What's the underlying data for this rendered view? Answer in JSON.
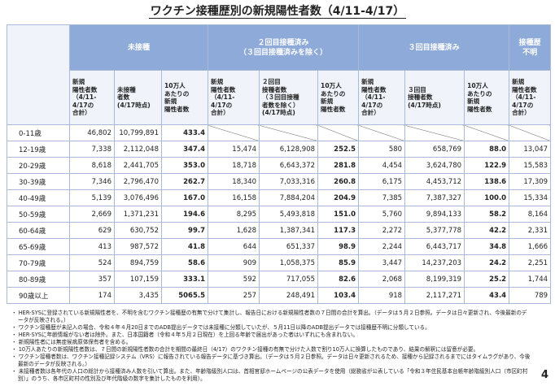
{
  "header": {
    "title": "ワクチン接種歴別の新規陽性者数（4/11-4/17）"
  },
  "table": {
    "groups": [
      {
        "label": "未接種",
        "span": 3
      },
      {
        "label": "２回目接種済み\n（３回目接種済みを除く）",
        "span": 3
      },
      {
        "label": "３回目接種済み",
        "span": 3
      },
      {
        "label": "接種歴\n不明",
        "span": 1
      }
    ],
    "subheaders": [
      "新規\n陽性者数\n（4/11-\n4/17の\n合計）",
      "未接種\n者数\n(4/17時点)",
      "10万人\nあたりの\n新規\n陽性者数",
      "新規\n陽性者数\n（4/11-\n4/17の\n合計）",
      "２回目\n接種者数\n（３回目接種\n者数を除く）\n(4/17時点)",
      "10万人\nあたりの\n新規\n陽性者数",
      "新規\n陽性者数\n（4/11-\n4/17の\n合計）",
      "３回目\n接種者数\n(4/17時点)",
      "10万人\nあたりの\n新規\n陽性者数",
      "新規\n陽性者数\n（4/11-\n4/17の\n合計）"
    ],
    "rows": [
      {
        "age": "0-11歳",
        "cells": [
          "46,802",
          "10,799,891",
          "433.4",
          null,
          null,
          null,
          null,
          null,
          null,
          null
        ]
      },
      {
        "age": "12-19歳",
        "cells": [
          "7,338",
          "2,112,048",
          "347.4",
          "15,474",
          "6,128,908",
          "252.5",
          "580",
          "658,769",
          "88.0",
          "13,047"
        ]
      },
      {
        "age": "20-29歳",
        "cells": [
          "8,618",
          "2,441,705",
          "353.0",
          "18,718",
          "6,643,372",
          "281.8",
          "4,454",
          "3,624,780",
          "122.9",
          "15,583"
        ]
      },
      {
        "age": "30-39歳",
        "cells": [
          "7,346",
          "2,796,470",
          "262.7",
          "18,340",
          "7,033,316",
          "260.8",
          "6,175",
          "4,453,712",
          "138.6",
          "17,309"
        ]
      },
      {
        "age": "40-49歳",
        "cells": [
          "5,139",
          "3,076,496",
          "167.0",
          "16,158",
          "7,884,204",
          "204.9",
          "7,385",
          "7,387,327",
          "100.0",
          "15,334"
        ]
      },
      {
        "age": "50-59歳",
        "cells": [
          "2,669",
          "1,371,231",
          "194.6",
          "8,295",
          "5,493,818",
          "151.0",
          "5,760",
          "9,894,133",
          "58.2",
          "8,164"
        ]
      },
      {
        "age": "60-64歳",
        "cells": [
          "629",
          "630,752",
          "99.7",
          "1,628",
          "1,387,341",
          "117.3",
          "2,272",
          "5,377,778",
          "42.2",
          "2,331"
        ]
      },
      {
        "age": "65-69歳",
        "cells": [
          "413",
          "987,572",
          "41.8",
          "644",
          "651,337",
          "98.9",
          "2,244",
          "6,443,717",
          "34.8",
          "1,666"
        ]
      },
      {
        "age": "70-79歳",
        "cells": [
          "524",
          "894,759",
          "58.6",
          "909",
          "1,058,375",
          "85.9",
          "3,447",
          "14,237,203",
          "24.2",
          "2,251"
        ]
      },
      {
        "age": "80-89歳",
        "cells": [
          "357",
          "107,159",
          "333.1",
          "592",
          "717,055",
          "82.6",
          "2,068",
          "8,199,319",
          "25.2",
          "1,744"
        ]
      },
      {
        "age": "90歳以上",
        "cells": [
          "174",
          "3,435",
          "5065.5",
          "257",
          "248,491",
          "103.4",
          "918",
          "2,117,271",
          "43.4",
          "789"
        ]
      }
    ]
  },
  "notes": [
    "・ HER-SYSに登録されている新規陽性者を、不明を含むワクチン接種歴の有無で分けて集計し、報告日における新規陽性者数の７日間の合計を算出。（データは５月２日参照。データは日々更新され、今後最新のデータが反映される。）",
    "・ ワクチン接種歴が未記入の場合、令和４年４月20日までのADB提出データでは未接種に分類していたが、５月11日以降のADB提出データでは接種歴不明に分類している。",
    "・ HER-SYSに年齢情報がない者は除外。また、日本国籍者（令和４年５月２日現在）を上回る年齢で届出があった者はいずれにも含まれない。",
    "・ 新規陽性者には無症候病原体保有者を含める。",
    "・ 10万人あたりの新規陽性者数は、７日間の新規陽性者数の合計を期間の最終日（4/17）のワクチン接種の有無で分けた人数で割り10万人に換算したものであり、結果の解釈には留意が必要。",
    "・ ワクチン接種者数は、ワクチン接種記録システム（VRS）に報告されている報告データに基づき算出。（データは５月２日参照。データは日々更新されるため、接種から記録されるまでにはタイムラグがあり、今後最新のデータが反映される。）",
    "・ 未接種者数は各年代の人口の総計から接種済み人数を引いて算出。また、年齢階級別人口は、首相官邸ホームページの公表データを使用（総務省が公表している「令和３年住民基本台帳年齢階級別人口（市区町村別）」のうち、各市区町村の性別及び年代階級の数字を集計したものを利用）。"
  ],
  "page_number": "4"
}
